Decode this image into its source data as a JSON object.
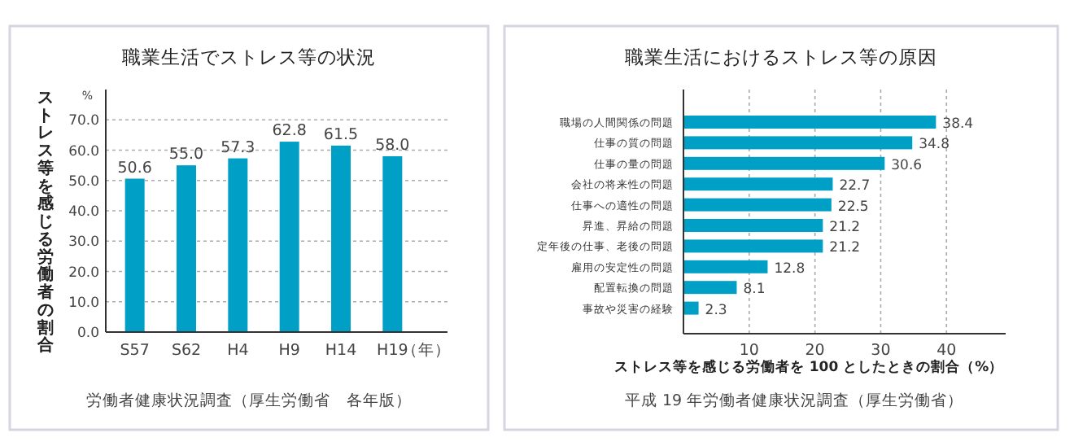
{
  "chart_data": [
    {
      "type": "bar",
      "title": "職業生活でストレス等の状況",
      "ylabel": "ストレス等を感じる労働者の割合",
      "xlabel": "（年）",
      "categories": [
        "S57",
        "S62",
        "H4",
        "H9",
        "H14",
        "H19"
      ],
      "values": [
        50.6,
        55.0,
        57.3,
        62.8,
        61.5,
        58.0
      ],
      "color": "#00a0c6",
      "value_labels": [
        "50.6",
        "55.0",
        "57.3",
        "62.8",
        "61.5",
        "58.0"
      ],
      "ylim": [
        0,
        80
      ],
      "yticks": [
        {
          "value": 0,
          "label": "0.0"
        },
        {
          "value": 10,
          "label": "10.0"
        },
        {
          "value": 20,
          "label": "20.0"
        },
        {
          "value": 30,
          "label": "30.0"
        },
        {
          "value": 40,
          "label": "40.0"
        },
        {
          "value": 50,
          "label": "50.0"
        },
        {
          "value": 60,
          "label": "60.0"
        },
        {
          "value": 70,
          "label": "70.0"
        }
      ],
      "grid": "y",
      "annotations": [
        "%",
        "労働者健康状況調査（厚生労働省　各年版）"
      ]
    },
    {
      "type": "bar",
      "orientation": "horizontal",
      "title": "職業生活におけるストレス等の原因",
      "xlabel": "ストレス等を感じる労働者を 100 としたときの割合（%）",
      "categories": [
        "職場の人間関係の問題",
        "仕事の質の問題",
        "仕事の量の問題",
        "会社の将来性の問題",
        "仕事への適性の問題",
        "昇進、昇給の問題",
        "定年後の仕事、老後の問題",
        "雇用の安定性の問題",
        "配置転換の問題",
        "事故や災害の経験"
      ],
      "values": [
        38.4,
        34.8,
        30.6,
        22.7,
        22.5,
        21.2,
        21.2,
        12.8,
        8.1,
        2.3
      ],
      "color": "#00a0c6",
      "data_labels": true,
      "xlim": [
        0,
        49
      ],
      "xticks": [
        10,
        20,
        30,
        40
      ],
      "grid": "x",
      "annotations": [
        "平成 19 年労働者健康状況調査（厚生労働省）"
      ]
    }
  ]
}
